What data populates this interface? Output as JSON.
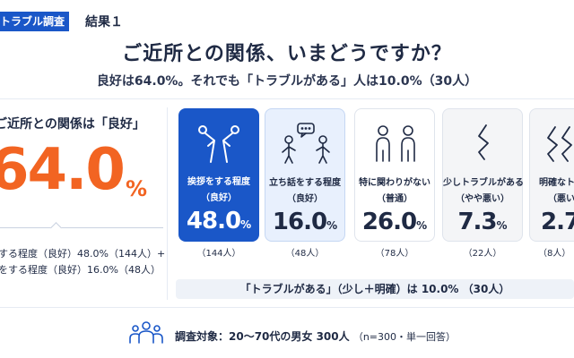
{
  "header": {
    "tag": "トラブル調査",
    "result": "結果１",
    "title": "ご近所との関係、いまどうですか？",
    "subtitle": "良好は64.0%。それでも「トラブルがある」人は10.0%（30人）"
  },
  "summary": {
    "label": "ご近所との関係は「良好」",
    "value": "64.0",
    "unit": "%",
    "note1": "する程度（良好）48.0%（144人）+",
    "note2": "をする程度（良好）16.0%（48人）"
  },
  "cards": [
    {
      "line1": "挨拶をする程度",
      "line2": "（良好）",
      "value": "48.0",
      "unit": "%",
      "count": "（144人）",
      "icon": "bowing-people-icon"
    },
    {
      "line1": "立ち話をする程度",
      "line2": "（良好）",
      "value": "16.0",
      "unit": "%",
      "count": "（48人）",
      "icon": "chatting-people-icon"
    },
    {
      "line1": "特に関わりがない",
      "line2": "（普通）",
      "value": "26.0",
      "unit": "%",
      "count": "（78人）",
      "icon": "two-people-icon"
    },
    {
      "line1": "少しトラブルがある",
      "line2": "（やや悪い）",
      "value": "7.3",
      "unit": "%",
      "count": "（22人）",
      "icon": "zigzag-icon"
    },
    {
      "line1": "明確なトラブ",
      "line2": "（悪い",
      "value": "2.7",
      "unit": "",
      "count": "（8人）",
      "icon": "double-zigzag-icon"
    }
  ],
  "trouble": {
    "text_a": "「トラブルがある」（少し＋明確）は",
    "value": "10.0%",
    "text_b": "（30人）"
  },
  "footer": {
    "label": "調査対象：20〜70代の男女 300人",
    "note": "（n=300・単一回答）",
    "icon": "people-group-icon"
  },
  "colors": {
    "brand_blue": "#1a57c8",
    "accent_orange": "#f26422",
    "text_navy": "#1f2a44"
  }
}
